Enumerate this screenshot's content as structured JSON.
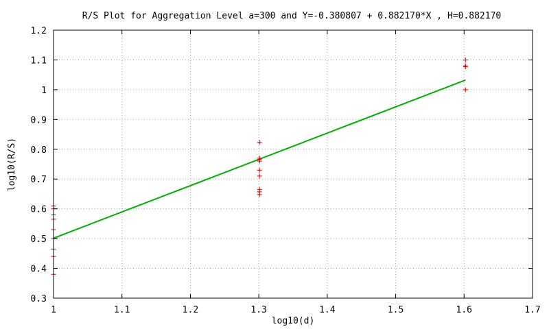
{
  "chart_data": {
    "type": "scatter",
    "title": "R/S Plot for Aggregation Level a=300 and Y=-0.380807 + 0.882170*X , H=0.882170",
    "xlabel": "log10(d)",
    "ylabel": "log10(R/S)",
    "xlim": [
      1.0,
      1.7
    ],
    "ylim": [
      0.3,
      1.2
    ],
    "x_ticks": [
      "1",
      "1.1",
      "1.2",
      "1.3",
      "1.4",
      "1.5",
      "1.6",
      "1.7"
    ],
    "y_ticks": [
      "0.3",
      "0.4",
      "0.5",
      "0.6",
      "0.7",
      "0.8",
      "0.9",
      "1",
      "1.1",
      "1.2"
    ],
    "grid": true,
    "colors": {
      "points": "#cc0000",
      "fit_line": "#00b000",
      "grid": "#a0a0a0"
    },
    "series": [
      {
        "type": "scatter",
        "marker": "+",
        "x": [
          1.0,
          1.0,
          1.0,
          1.0,
          1.0,
          1.0,
          1.0,
          1.0,
          1.0,
          1.301,
          1.301,
          1.301,
          1.301,
          1.301,
          1.301,
          1.301,
          1.301,
          1.301,
          1.602,
          1.602,
          1.602,
          1.602
        ],
        "y": [
          0.61,
          0.6,
          0.58,
          0.565,
          0.53,
          0.5,
          0.465,
          0.44,
          0.38,
          0.823,
          0.77,
          0.76,
          0.73,
          0.71,
          0.665,
          0.657,
          0.648,
          0.765,
          1.1,
          1.08,
          1.077,
          1.0
        ]
      },
      {
        "type": "line",
        "x": [
          1.0,
          1.602
        ],
        "y": [
          0.501363,
          1.03243
        ]
      }
    ]
  }
}
